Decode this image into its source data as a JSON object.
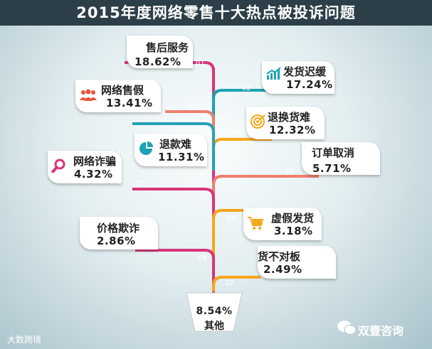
{
  "title": "2015年度网络零售十大热点被投诉问题",
  "chart_data": {
    "type": "tree",
    "title": "2015年度网络零售十大热点被投诉问题",
    "categories": [
      "售后服务",
      "发货迟缓",
      "网络售假",
      "退换货难",
      "退款难",
      "订单取消",
      "网络诈骗",
      "虚假发货",
      "价格欺诈",
      "货不对板",
      "其他"
    ],
    "numbers": [
      "01",
      "02",
      "03",
      "04",
      "05",
      "06",
      "07",
      "08",
      "09",
      "10",
      ""
    ],
    "values": [
      18.62,
      17.24,
      13.41,
      12.32,
      11.31,
      5.71,
      4.32,
      3.18,
      2.86,
      2.49,
      8.54
    ],
    "value_labels": [
      "18.62%",
      "17.24%",
      "13.41%",
      "12.32%",
      "11.31%",
      "5.71%",
      "4.32%",
      "3.18%",
      "2.86%",
      "2.49%",
      "8.54%"
    ],
    "branch_colors": [
      "#d8357a",
      "#1ba2b5",
      "#ef7f6e",
      "#f7a61c",
      "#26a0b6",
      "#ef7f6e",
      "#d8357a",
      "#f7a61c",
      "#d8357a",
      "#f7a61c"
    ],
    "icons": [
      "",
      "chart-icon",
      "people-icon",
      "target-icon",
      "pie-icon",
      "",
      "magnifier-icon",
      "cart-icon",
      "",
      ""
    ],
    "icon_color": "#1ba2b5"
  },
  "footer": {
    "source": "大数跨境",
    "brand": "双壹咨询"
  },
  "colors": {
    "title_bar": "#2c3f49",
    "trunk": "#d8357a"
  }
}
